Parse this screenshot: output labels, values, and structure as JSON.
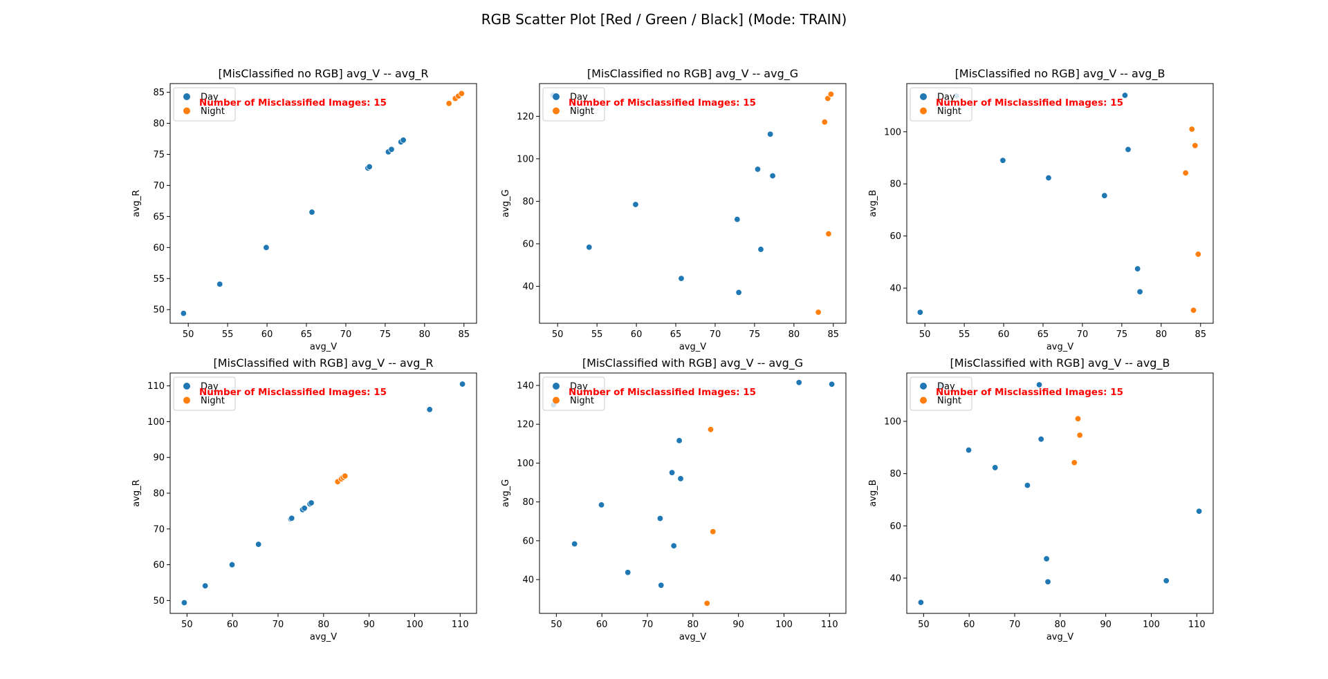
{
  "figure": {
    "suptitle": "RGB Scatter Plot [Red / Green / Black] (Mode: TRAIN)"
  },
  "legend": {
    "entries": [
      {
        "label": "Day",
        "color": "#1f77b4"
      },
      {
        "label": "Night",
        "color": "#ff7f0e"
      }
    ],
    "placement": "upper-left"
  },
  "annotation": "Number of Misclassified Images: 15",
  "chart_data": [
    {
      "type": "scatter",
      "title": "[MisClassified no RGB] avg_V -- avg_R",
      "xlabel": "avg_V",
      "ylabel": "avg_R",
      "xlim": [
        47.7,
        86.6
      ],
      "ylim": [
        47.8,
        86.4
      ],
      "xticks": [
        50,
        55,
        60,
        65,
        70,
        75,
        80,
        85
      ],
      "yticks": [
        50,
        55,
        60,
        65,
        70,
        75,
        80,
        85
      ],
      "series": [
        {
          "name": "Day",
          "color": "#1f77b4",
          "x": [
            49.4,
            54.0,
            59.9,
            65.7,
            72.8,
            73.0,
            75.4,
            75.8,
            77.0,
            77.3
          ],
          "y": [
            49.4,
            54.1,
            60.0,
            65.7,
            72.8,
            73.0,
            75.4,
            75.8,
            77.0,
            77.3
          ]
        },
        {
          "name": "Night",
          "color": "#ff7f0e",
          "x": [
            83.1,
            83.9,
            84.3,
            84.7
          ],
          "y": [
            83.2,
            84.0,
            84.4,
            84.8
          ]
        }
      ]
    },
    {
      "type": "scatter",
      "title": "[MisClassified no RGB] avg_V -- avg_G",
      "xlabel": "avg_V",
      "ylabel": "avg_G",
      "xlim": [
        47.7,
        86.6
      ],
      "ylim": [
        22.6,
        135.4
      ],
      "xticks": [
        50,
        55,
        60,
        65,
        70,
        75,
        80,
        85
      ],
      "yticks": [
        40,
        60,
        80,
        100,
        120
      ],
      "series": [
        {
          "name": "Day",
          "color": "#1f77b4",
          "x": [
            49.4,
            54.0,
            59.9,
            65.7,
            72.8,
            73.0,
            75.4,
            75.8,
            77.0,
            77.3
          ],
          "y": [
            130.0,
            58.4,
            78.5,
            43.7,
            71.5,
            37.1,
            95.1,
            57.4,
            111.6,
            92.0
          ]
        },
        {
          "name": "Night",
          "color": "#ff7f0e",
          "x": [
            83.1,
            83.9,
            84.3,
            84.7
          ],
          "y": [
            27.8,
            117.3,
            128.4,
            130.4
          ]
        },
        {
          "name": "",
          "color": "#ff7f0e",
          "x": [
            84.4
          ],
          "y": [
            64.7
          ]
        }
      ]
    },
    {
      "type": "scatter",
      "title": "[MisClassified no RGB] avg_V -- avg_B",
      "xlabel": "avg_V",
      "ylabel": "avg_B",
      "xlim": [
        47.7,
        86.6
      ],
      "ylim": [
        26.5,
        118.5
      ],
      "xticks": [
        50,
        55,
        60,
        65,
        70,
        75,
        80,
        85
      ],
      "yticks": [
        40,
        60,
        80,
        100
      ],
      "series": [
        {
          "name": "Day",
          "color": "#1f77b4",
          "x": [
            49.4,
            54.0,
            59.9,
            65.7,
            72.8,
            75.4,
            75.8,
            77.0,
            77.3
          ],
          "y": [
            30.7,
            113.8,
            89.0,
            82.3,
            75.5,
            114.0,
            93.2,
            47.4,
            38.6
          ]
        },
        {
          "name": "Night",
          "color": "#ff7f0e",
          "x": [
            83.1,
            83.9,
            84.1,
            84.3,
            84.7
          ],
          "y": [
            84.2,
            101.0,
            31.5,
            94.7,
            53.0
          ]
        }
      ]
    },
    {
      "type": "scatter",
      "title": "[MisClassified with RGB] avg_V -- avg_R",
      "xlabel": "avg_V",
      "ylabel": "avg_R",
      "xlim": [
        46.3,
        113.6
      ],
      "ylim": [
        46.4,
        113.6
      ],
      "xticks": [
        50,
        60,
        70,
        80,
        90,
        100,
        110
      ],
      "yticks": [
        50,
        60,
        70,
        80,
        90,
        100,
        110
      ],
      "series": [
        {
          "name": "Day",
          "color": "#1f77b4",
          "x": [
            49.4,
            54.0,
            59.9,
            65.7,
            72.8,
            73.0,
            75.4,
            75.8,
            77.0,
            77.3,
            103.3,
            110.5
          ],
          "y": [
            49.4,
            54.1,
            60.0,
            65.7,
            72.8,
            73.0,
            75.4,
            75.8,
            77.0,
            77.3,
            103.4,
            110.5
          ]
        },
        {
          "name": "Night",
          "color": "#ff7f0e",
          "x": [
            83.1,
            83.9,
            84.3,
            84.7
          ],
          "y": [
            83.2,
            84.0,
            84.4,
            84.8
          ]
        }
      ]
    },
    {
      "type": "scatter",
      "title": "[MisClassified with RGB] avg_V -- avg_G",
      "xlabel": "avg_V",
      "ylabel": "avg_G",
      "xlim": [
        46.3,
        113.6
      ],
      "ylim": [
        22.6,
        146.4
      ],
      "xticks": [
        50,
        60,
        70,
        80,
        90,
        100,
        110
      ],
      "yticks": [
        40,
        60,
        80,
        100,
        120,
        140
      ],
      "series": [
        {
          "name": "Day",
          "color": "#1f77b4",
          "x": [
            49.4,
            54.0,
            59.9,
            65.7,
            72.8,
            73.0,
            75.4,
            75.8,
            77.0,
            77.3,
            103.3,
            110.5
          ],
          "y": [
            130.0,
            58.4,
            78.5,
            43.7,
            71.5,
            37.1,
            95.1,
            57.4,
            111.6,
            92.0,
            141.5,
            140.6
          ]
        },
        {
          "name": "Night",
          "color": "#ff7f0e",
          "x": [
            83.1,
            83.9,
            84.4
          ],
          "y": [
            27.8,
            117.3,
            64.7
          ]
        }
      ]
    },
    {
      "type": "scatter",
      "title": "[MisClassified with RGB] avg_V -- avg_B",
      "xlabel": "avg_V",
      "ylabel": "avg_B",
      "xlim": [
        46.3,
        113.6
      ],
      "ylim": [
        26.5,
        118.5
      ],
      "xticks": [
        50,
        60,
        70,
        80,
        90,
        100,
        110
      ],
      "yticks": [
        40,
        60,
        80,
        100
      ],
      "series": [
        {
          "name": "Day",
          "color": "#1f77b4",
          "x": [
            49.4,
            54.0,
            59.9,
            65.7,
            72.8,
            75.4,
            75.8,
            77.0,
            77.3,
            103.3,
            110.5
          ],
          "y": [
            30.7,
            113.8,
            89.0,
            82.3,
            75.5,
            114.0,
            93.2,
            47.4,
            38.6,
            39.0,
            65.6
          ]
        },
        {
          "name": "Night",
          "color": "#ff7f0e",
          "x": [
            83.1,
            83.9,
            84.3
          ],
          "y": [
            84.2,
            101.0,
            94.7
          ]
        }
      ]
    }
  ]
}
